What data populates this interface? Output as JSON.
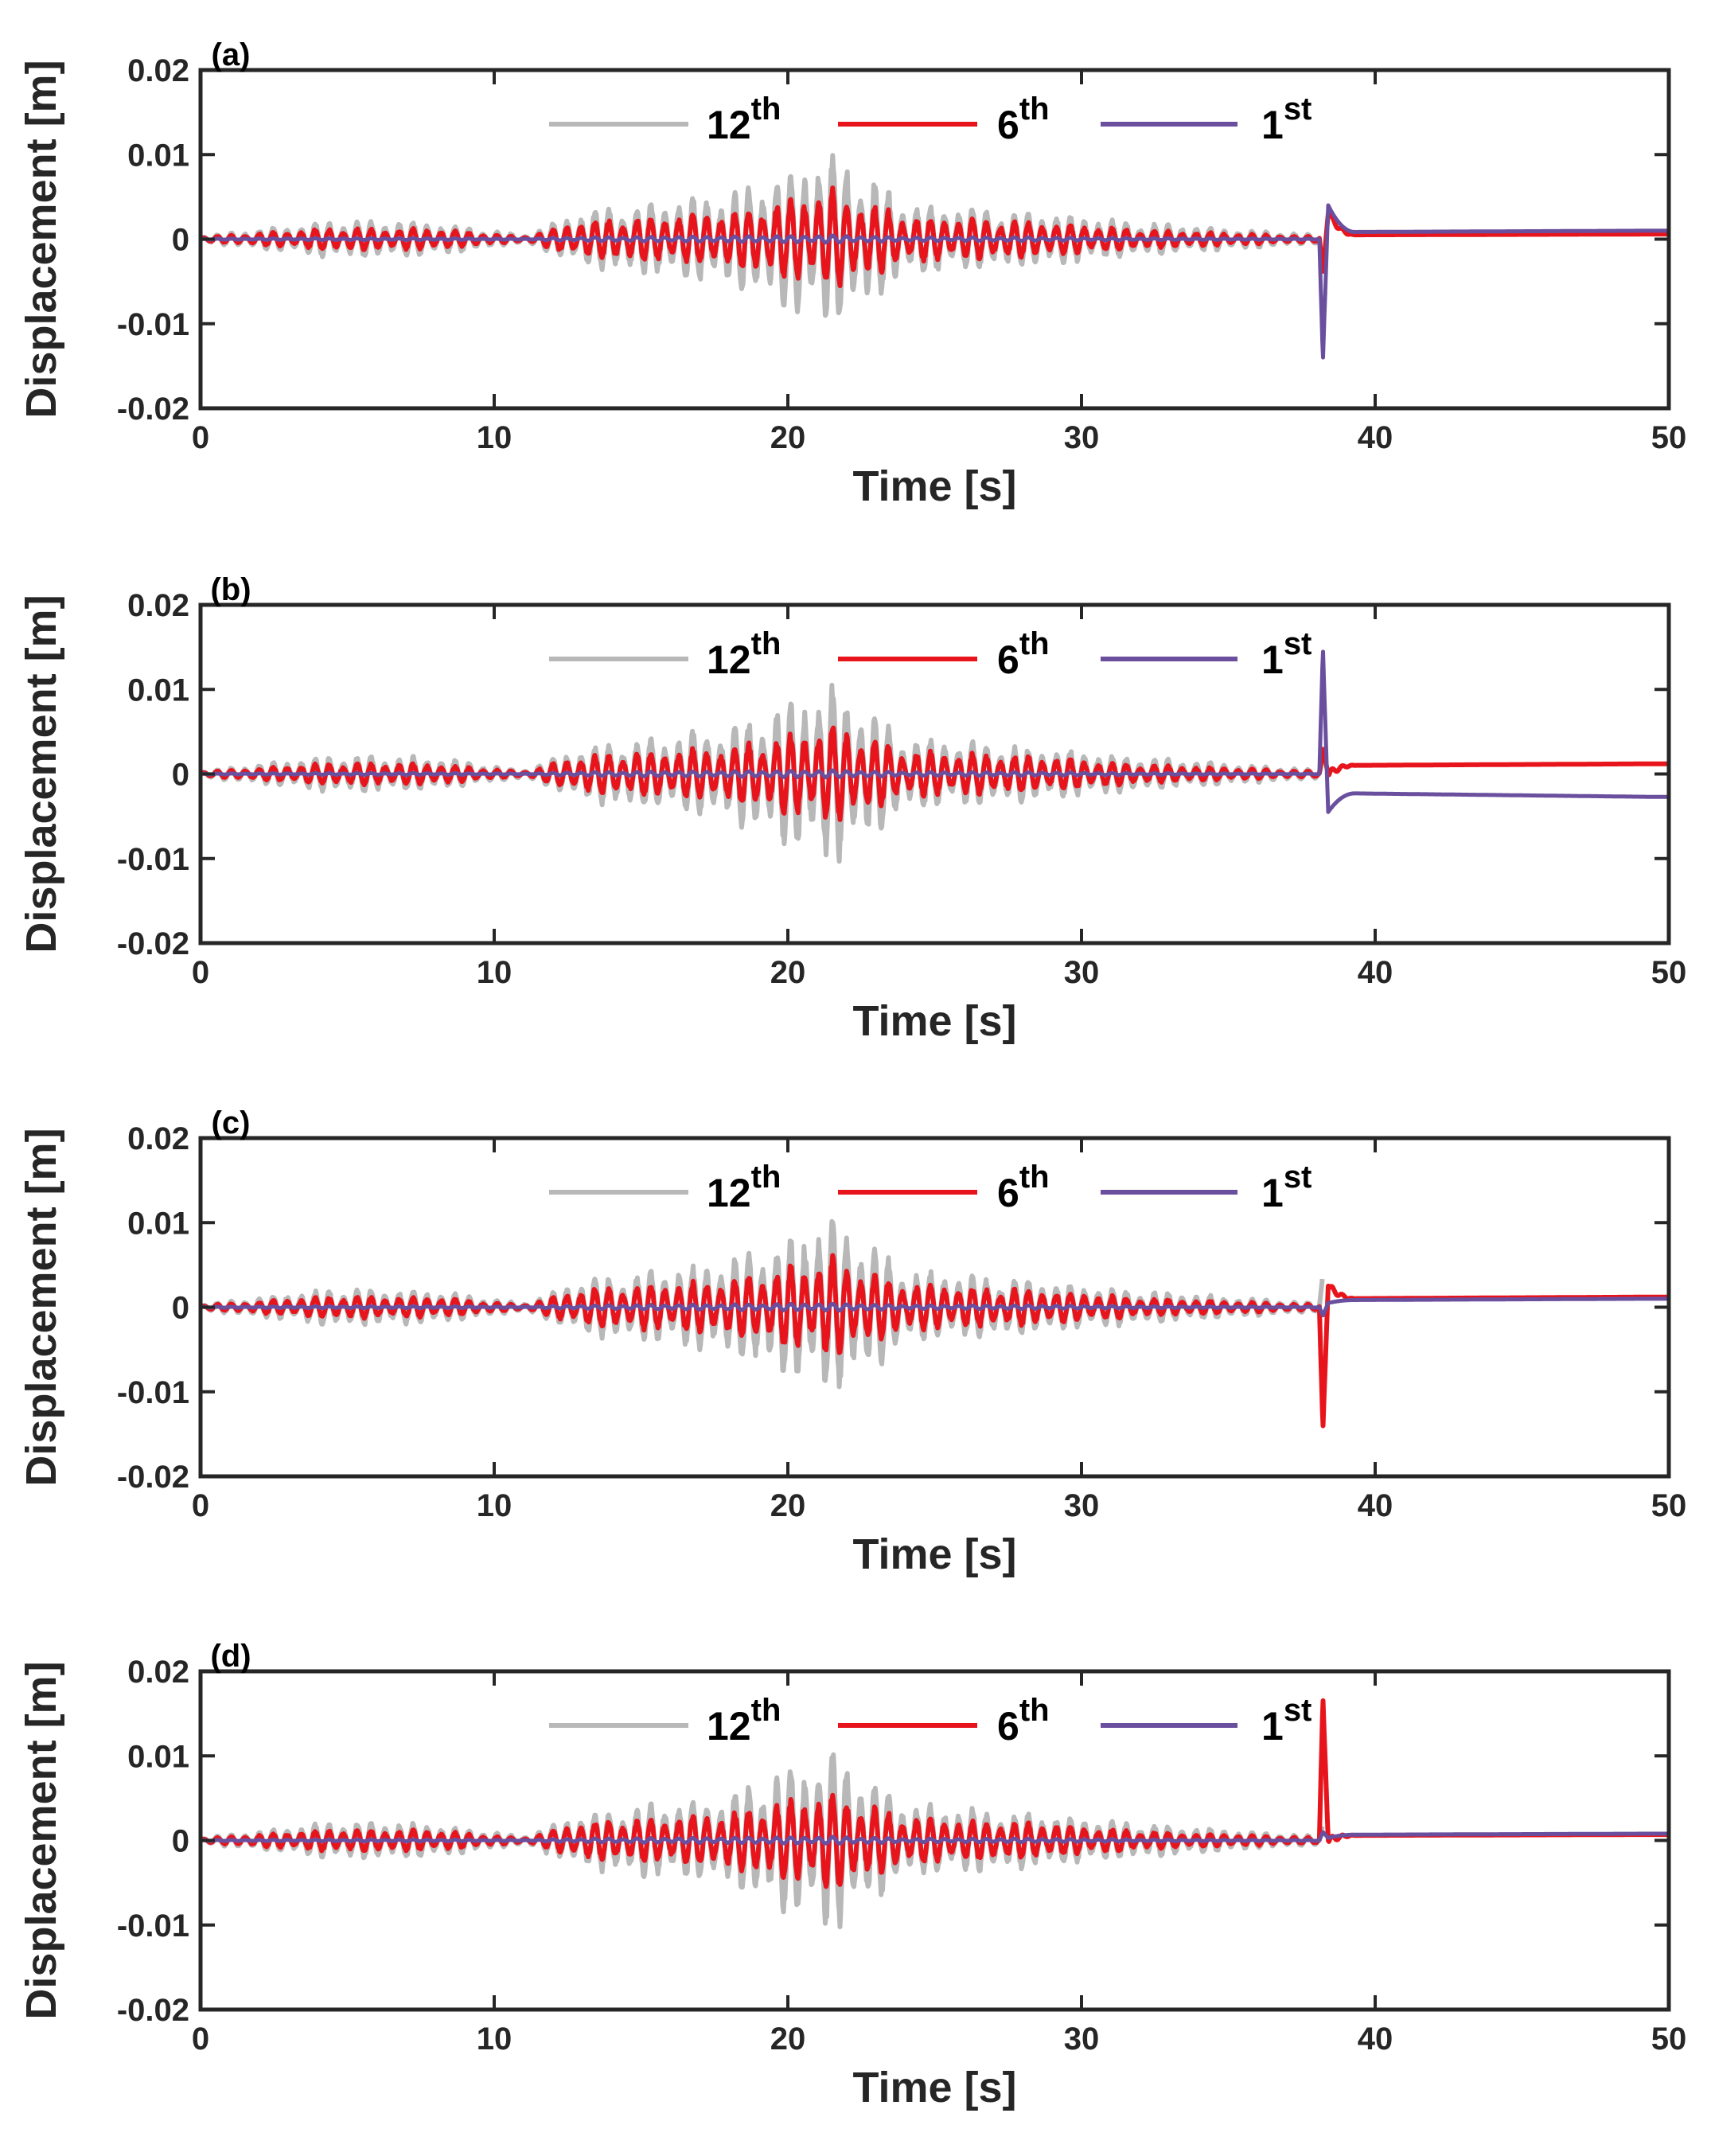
{
  "chart_data": {
    "type": "line",
    "xlabel": "Time [s]",
    "ylabel": "Displacement [m]",
    "xlim": [
      0,
      50
    ],
    "ylim": [
      -0.02,
      0.02
    ],
    "xticks": [
      0,
      10,
      20,
      30,
      40,
      50
    ],
    "xtick_labels": [
      "0",
      "10",
      "20",
      "30",
      "40",
      "50"
    ],
    "yticks": [
      0.02,
      0.01,
      0,
      -0.01,
      -0.02
    ],
    "ytick_labels": [
      "0.02",
      "0.01",
      "0",
      "-0.01",
      "-0.02"
    ],
    "grid": false,
    "legend_position": "top-center",
    "colors": {
      "12th": "#b8b8b8",
      "6th": "#e8141c",
      "1st": "#6a4f9e"
    },
    "base_motion": {
      "description_of_envelope": "shared earthquake response for 0-38 s",
      "envelope_points": [
        {
          "t": 0,
          "amp12": 0.0003,
          "amp6": 0.0002,
          "amp1": 5e-05
        },
        {
          "t": 4.5,
          "amp12": 0.002,
          "amp6": 0.0012,
          "amp1": 0.0001
        },
        {
          "t": 8,
          "amp12": 0.0018,
          "amp6": 0.0011,
          "amp1": 0.0001
        },
        {
          "t": 11,
          "amp12": 0.0004,
          "amp6": 0.0002,
          "amp1": 5e-05
        },
        {
          "t": 13,
          "amp12": 0.003,
          "amp6": 0.002,
          "amp1": 0.0002
        },
        {
          "t": 18,
          "amp12": 0.005,
          "amp6": 0.003,
          "amp1": 0.0003
        },
        {
          "t": 21.5,
          "amp12": 0.01,
          "amp6": 0.0055,
          "amp1": 0.0004
        },
        {
          "t": 24,
          "amp12": 0.004,
          "amp6": 0.0025,
          "amp1": 0.0002
        },
        {
          "t": 28,
          "amp12": 0.003,
          "amp6": 0.002,
          "amp1": 0.0002
        },
        {
          "t": 32,
          "amp12": 0.0018,
          "amp6": 0.001,
          "amp1": 0.0001
        },
        {
          "t": 37.8,
          "amp12": 0.0005,
          "amp6": 0.0003,
          "amp1": 5e-05
        }
      ]
    },
    "panels": [
      {
        "id": "a",
        "label": "(a)",
        "legend": [
          {
            "key": "12th",
            "base": "12",
            "sup": "th"
          },
          {
            "key": "6th",
            "base": "6",
            "sup": "th"
          },
          {
            "key": "1st",
            "base": "1",
            "sup": "st"
          }
        ],
        "post_event": {
          "t_event": 38.1,
          "spike_1st": -0.0145,
          "spike_6th": -0.004,
          "spike_12th": -0.003,
          "rebound_1st": 0.004,
          "rebound_6th": 0.003,
          "final_12th": 0.0012,
          "final_6th": 0.0006,
          "final_1st": 0.001
        }
      },
      {
        "id": "b",
        "label": "(b)",
        "legend": [
          {
            "key": "12th",
            "base": "12",
            "sup": "th"
          },
          {
            "key": "6th",
            "base": "6",
            "sup": "th"
          },
          {
            "key": "1st",
            "base": "1",
            "sup": "st"
          }
        ],
        "post_event": {
          "t_event": 38.1,
          "spike_1st": 0.015,
          "spike_6th": 0.003,
          "spike_12th": 0.002,
          "rebound_1st": -0.0045,
          "rebound_6th": 0.0,
          "final_12th": 0.0012,
          "final_6th": 0.0012,
          "final_1st": -0.0027
        }
      },
      {
        "id": "c",
        "label": "(c)",
        "legend": [
          {
            "key": "12th",
            "base": "12",
            "sup": "th"
          },
          {
            "key": "6th",
            "base": "6",
            "sup": "th"
          },
          {
            "key": "1st",
            "base": "1",
            "sup": "st"
          }
        ],
        "post_event": {
          "t_event": 38.1,
          "spike_1st": -0.001,
          "spike_6th": -0.0145,
          "spike_12th": 0.004,
          "rebound_1st": 0.0005,
          "rebound_6th": 0.0025,
          "final_12th": 0.0013,
          "final_6th": 0.0012,
          "final_1st": 0.001
        }
      },
      {
        "id": "d",
        "label": "(d)",
        "legend": [
          {
            "key": "12th",
            "base": "12",
            "sup": "th"
          },
          {
            "key": "6th",
            "base": "6",
            "sup": "th"
          },
          {
            "key": "1st",
            "base": "1",
            "sup": "st"
          }
        ],
        "post_event": {
          "t_event": 38.1,
          "spike_1st": 0.001,
          "spike_6th": 0.017,
          "spike_12th": 0.002,
          "rebound_1st": 0.0003,
          "rebound_6th": 0.0,
          "final_12th": 0.0022,
          "final_6th": 0.0007,
          "final_1st": 0.0008
        }
      }
    ]
  }
}
